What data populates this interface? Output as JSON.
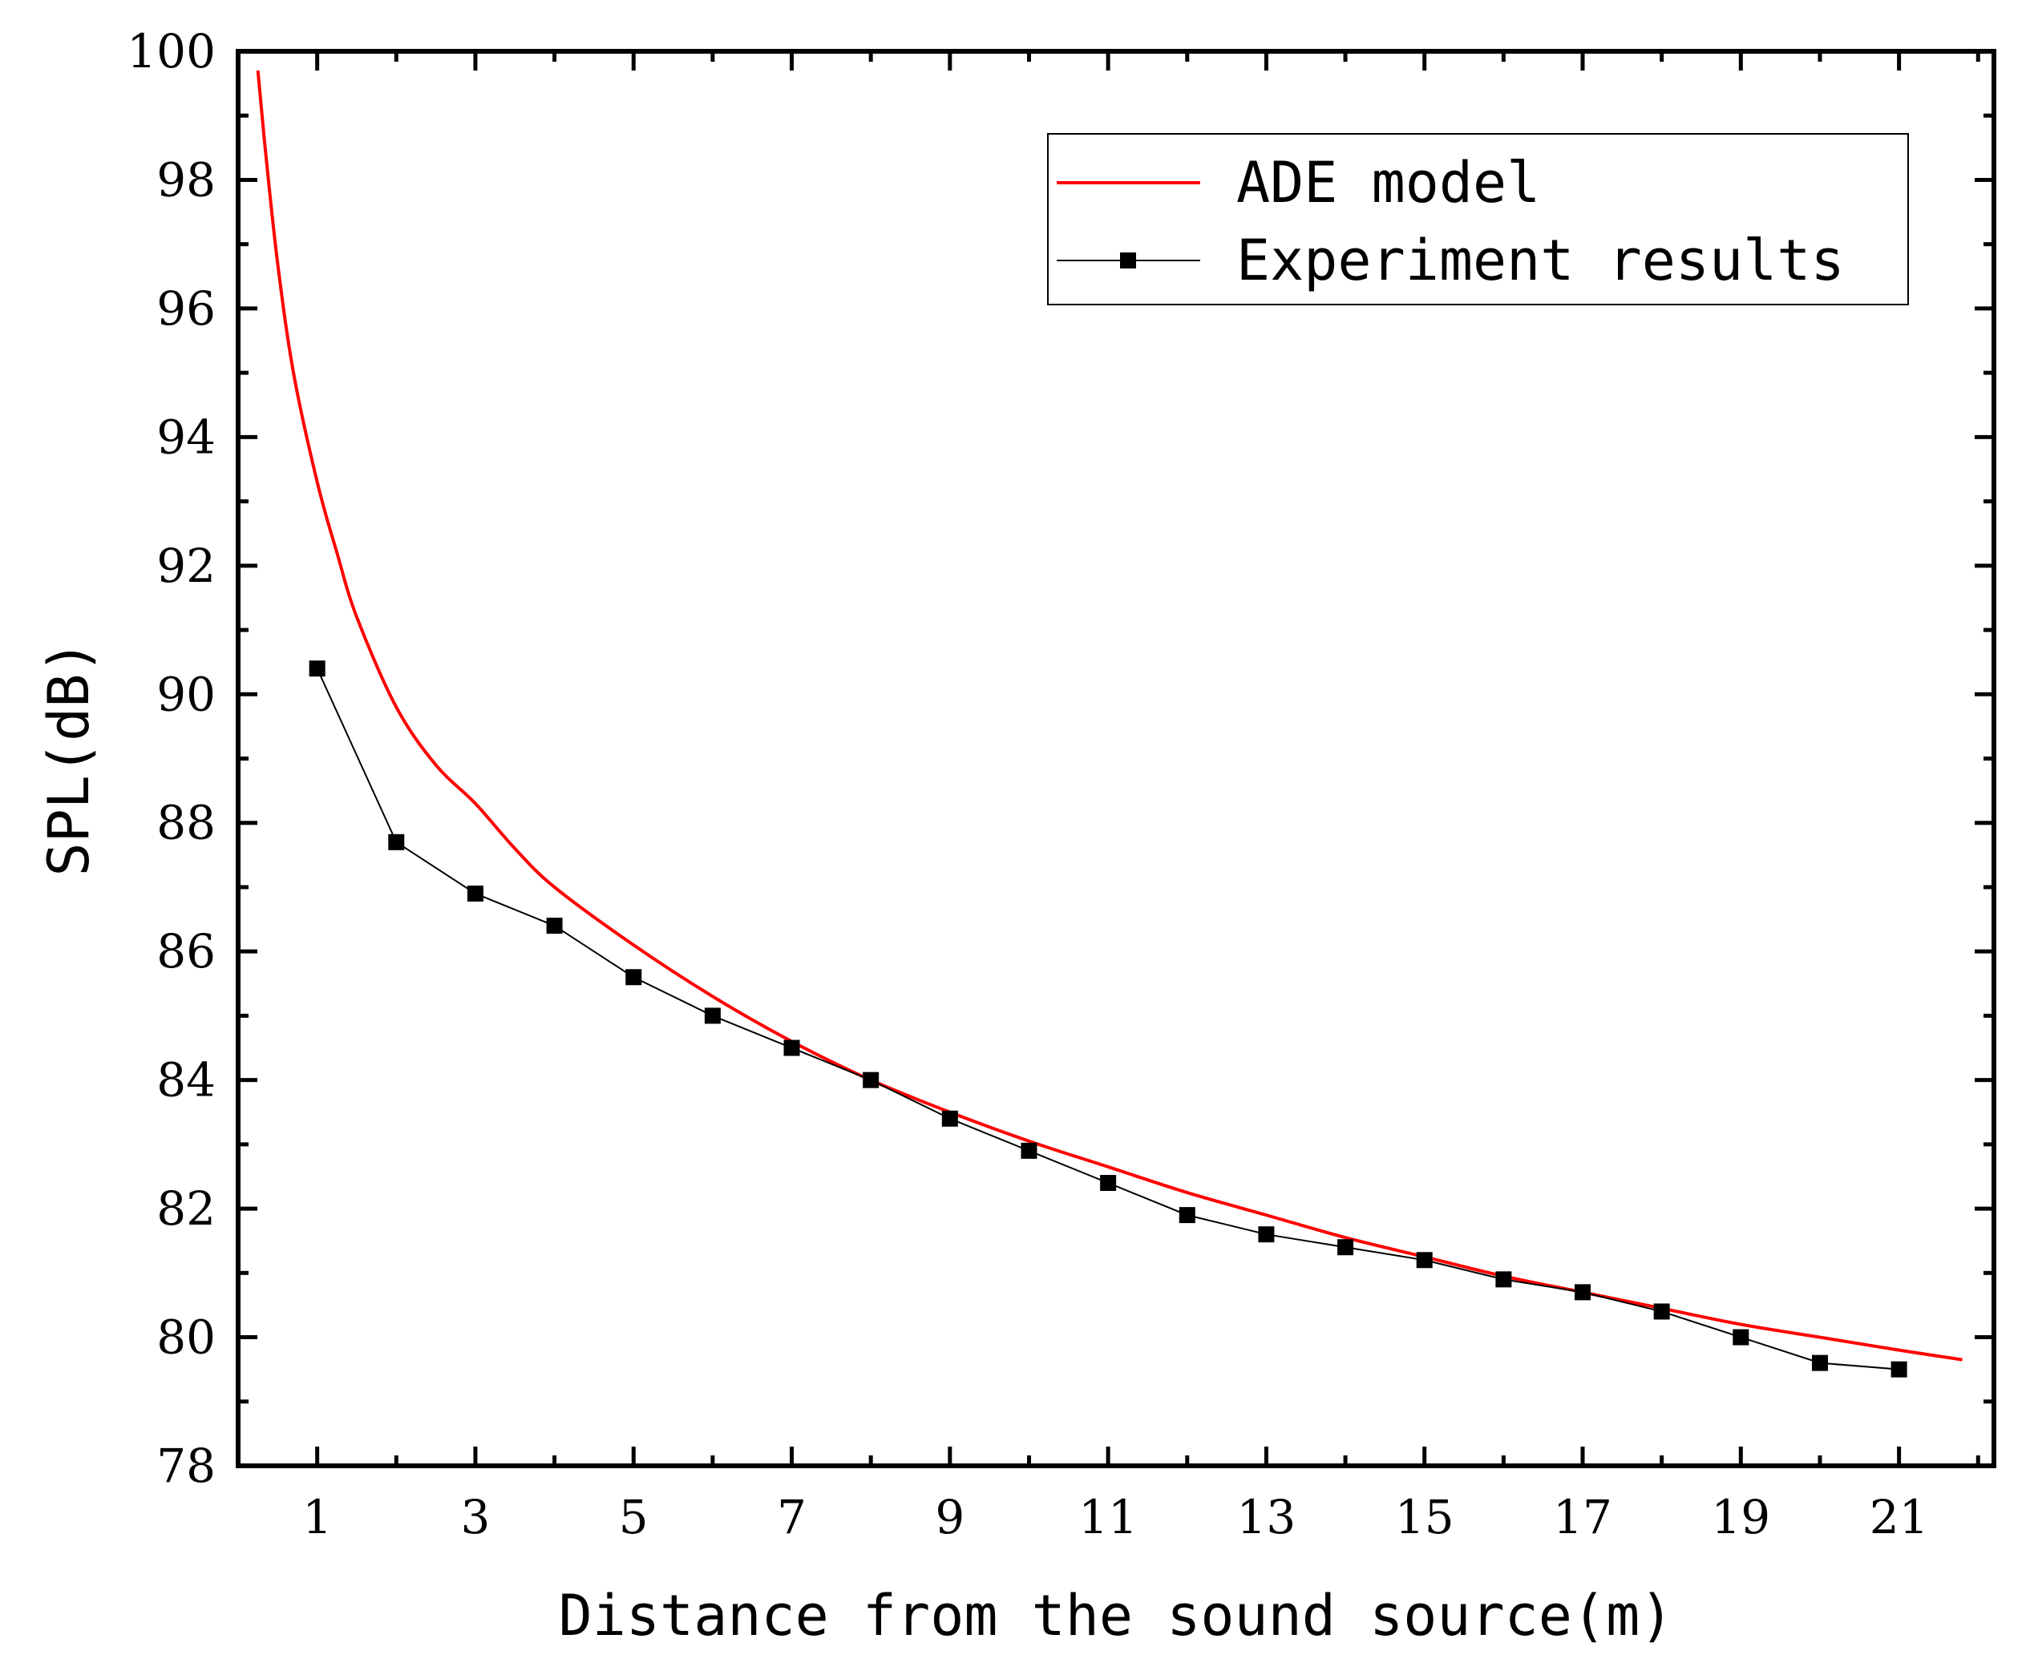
{
  "chart_data": {
    "type": "line",
    "xlabel": "Distance from the sound source(m)",
    "ylabel": "SPL(dB)",
    "xlim": [
      0,
      22.2
    ],
    "ylim": [
      78,
      100
    ],
    "x_ticks": [
      1,
      3,
      5,
      7,
      9,
      11,
      13,
      15,
      17,
      19,
      21
    ],
    "y_ticks": [
      78,
      80,
      82,
      84,
      86,
      88,
      90,
      92,
      94,
      96,
      98,
      100
    ],
    "grid": false,
    "legend_position": "top-right",
    "series": [
      {
        "name": "ADE model",
        "color": "#ff0000",
        "marker": "none",
        "x": [
          0.25,
          0.35,
          0.5,
          0.7,
          1,
          1.25,
          1.5,
          2,
          2.5,
          3,
          3.5,
          4,
          5,
          6,
          7,
          8,
          9,
          10,
          11,
          12,
          13,
          14,
          15,
          16,
          17,
          18,
          19,
          20,
          21,
          21.8
        ],
        "y": [
          99.7,
          98.4,
          96.7,
          95.0,
          93.3,
          92.2,
          91.2,
          89.8,
          88.9,
          88.3,
          87.6,
          87.0,
          86.1,
          85.3,
          84.6,
          84.0,
          83.5,
          83.05,
          82.65,
          82.25,
          81.9,
          81.55,
          81.25,
          80.95,
          80.7,
          80.45,
          80.2,
          80.0,
          79.8,
          79.65
        ]
      },
      {
        "name": "Experiment results",
        "color": "#000000",
        "marker": "square",
        "x": [
          1,
          2,
          3,
          4,
          5,
          6,
          7,
          8,
          9,
          10,
          11,
          12,
          13,
          14,
          15,
          16,
          17,
          18,
          19,
          20,
          21
        ],
        "y": [
          90.4,
          87.7,
          86.9,
          86.4,
          85.6,
          85.0,
          84.5,
          84.0,
          83.4,
          82.9,
          82.4,
          81.9,
          81.6,
          81.4,
          81.2,
          80.9,
          80.7,
          80.4,
          80.0,
          79.6,
          79.5
        ]
      }
    ]
  }
}
